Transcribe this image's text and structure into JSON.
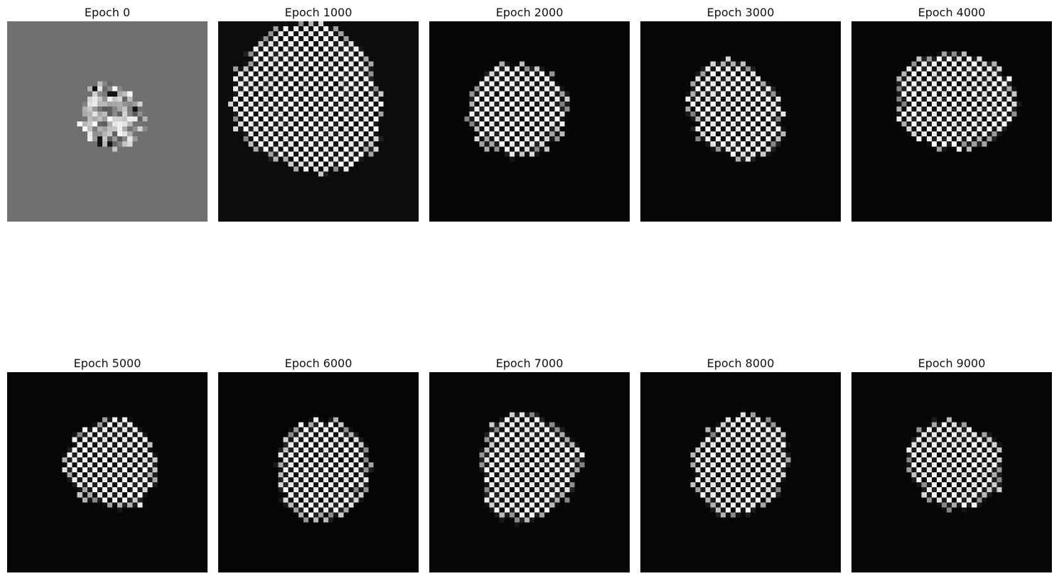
{
  "figure": {
    "panels": [
      {
        "title": "Epoch 0",
        "background": "#707070",
        "pattern": "noisy-seed",
        "seed": 11
      },
      {
        "title": "Epoch 1000",
        "background": "#0c0c0c",
        "pattern": "checker-blob",
        "seed": 21
      },
      {
        "title": "Epoch 2000",
        "background": "#060606",
        "pattern": "checker-blob",
        "seed": 33
      },
      {
        "title": "Epoch 3000",
        "background": "#070707",
        "pattern": "checker-blob",
        "seed": 47
      },
      {
        "title": "Epoch 4000",
        "background": "#060606",
        "pattern": "checker-blob",
        "seed": 58
      },
      {
        "title": "Epoch 5000",
        "background": "#070707",
        "pattern": "checker-blob",
        "seed": 64
      },
      {
        "title": "Epoch 6000",
        "background": "#050505",
        "pattern": "checker-blob",
        "seed": 72
      },
      {
        "title": "Epoch 7000",
        "background": "#070707",
        "pattern": "checker-blob",
        "seed": 85
      },
      {
        "title": "Epoch 8000",
        "background": "#070707",
        "pattern": "checker-blob",
        "seed": 93
      },
      {
        "title": "Epoch 9000",
        "background": "#070707",
        "pattern": "checker-blob",
        "seed": 101
      }
    ]
  }
}
